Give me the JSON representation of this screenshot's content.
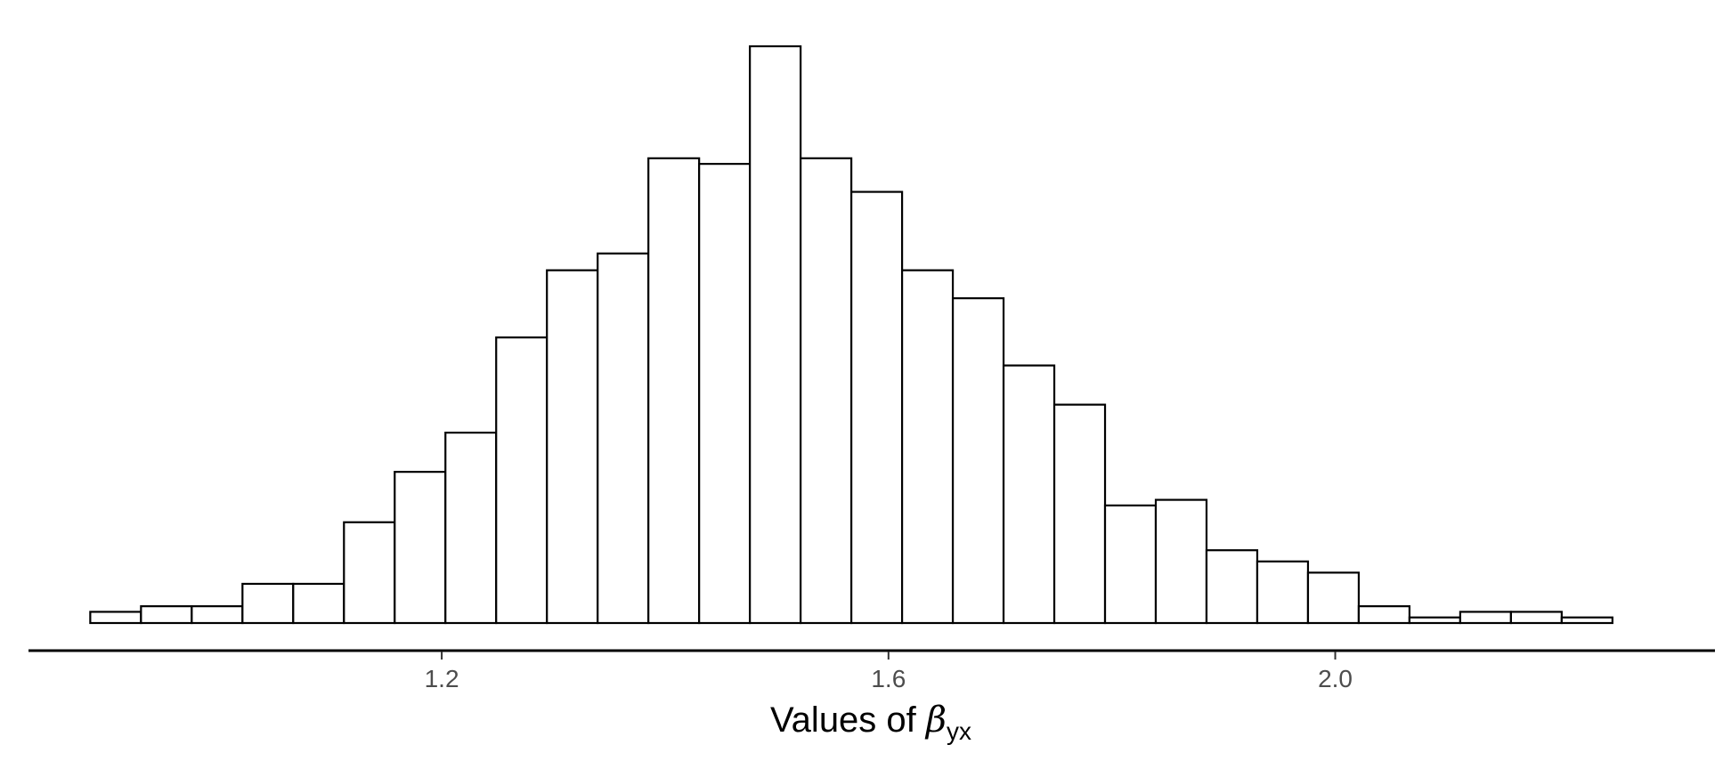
{
  "chart_data": {
    "type": "bar",
    "subtype": "histogram",
    "title": "",
    "xlabel": {
      "prefix": "Values of ",
      "symbol": "β",
      "subscript": "yx"
    },
    "ylabel": "",
    "x_ticks": [
      {
        "value": 1.2,
        "label": "1.2"
      },
      {
        "value": 1.6,
        "label": "1.6"
      },
      {
        "value": 2.0,
        "label": "2.0"
      }
    ],
    "xlim": [
      0.83,
      2.34
    ],
    "bin_start": 0.8853,
    "bin_width": 0.04543,
    "counts": [
      2,
      3,
      3,
      7,
      7,
      18,
      27,
      34,
      51,
      63,
      66,
      83,
      82,
      103,
      83,
      77,
      63,
      58,
      46,
      39,
      21,
      22,
      13,
      11,
      9,
      3,
      1,
      2,
      2,
      1
    ],
    "ylim": [
      0,
      105
    ],
    "grid": false,
    "legend": "none",
    "colors": {
      "bar_fill": "#ffffff",
      "bar_stroke": "#000000",
      "axis": "#000000",
      "tick_label": "#4d4d4d"
    }
  }
}
